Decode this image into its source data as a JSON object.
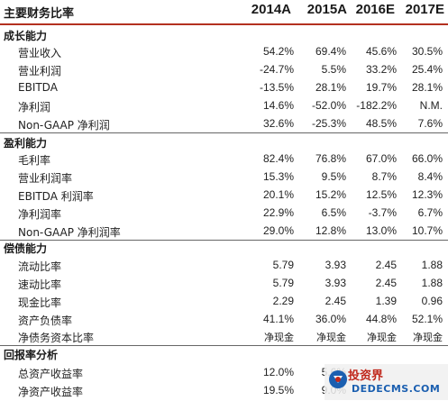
{
  "header": {
    "title": "主要财务比率",
    "years": [
      "2014A",
      "2015A",
      "2016E",
      "2017E"
    ]
  },
  "sections": [
    {
      "title": "成长能力",
      "rows": [
        {
          "label": "营业收入",
          "values": [
            "54.2%",
            "69.4%",
            "45.6%",
            "30.5%"
          ]
        },
        {
          "label": "营业利润",
          "values": [
            "-24.7%",
            "5.5%",
            "33.2%",
            "25.4%"
          ]
        },
        {
          "label": "EBITDA",
          "values": [
            "-13.5%",
            "28.1%",
            "19.7%",
            "28.1%"
          ]
        },
        {
          "label": "净利润",
          "values": [
            "14.6%",
            "-52.0%",
            "-182.2%",
            "N.M."
          ]
        },
        {
          "label": "Non-GAAP 净利润",
          "values": [
            "32.6%",
            "-25.3%",
            "48.5%",
            "7.6%"
          ]
        }
      ]
    },
    {
      "title": "盈利能力",
      "rows": [
        {
          "label": "毛利率",
          "values": [
            "82.4%",
            "76.8%",
            "67.0%",
            "66.0%"
          ]
        },
        {
          "label": "营业利润率",
          "values": [
            "15.3%",
            "9.5%",
            "8.7%",
            "8.4%"
          ]
        },
        {
          "label": "EBITDA 利润率",
          "values": [
            "20.1%",
            "15.2%",
            "12.5%",
            "12.3%"
          ]
        },
        {
          "label": "净利润率",
          "values": [
            "22.9%",
            "6.5%",
            "-3.7%",
            "6.7%"
          ]
        },
        {
          "label": "Non-GAAP 净利润率",
          "values": [
            "29.0%",
            "12.8%",
            "13.0%",
            "10.7%"
          ]
        }
      ]
    },
    {
      "title": "偿债能力",
      "rows": [
        {
          "label": "流动比率",
          "values": [
            "5.79",
            "3.93",
            "2.45",
            "1.88"
          ]
        },
        {
          "label": "速动比率",
          "values": [
            "5.79",
            "3.93",
            "2.45",
            "1.88"
          ]
        },
        {
          "label": "现金比率",
          "values": [
            "2.29",
            "2.45",
            "1.39",
            "0.96"
          ]
        },
        {
          "label": "资产负债率",
          "values": [
            "41.1%",
            "36.0%",
            "44.8%",
            "52.1%"
          ]
        },
        {
          "label": "净债务资本比率",
          "values": [
            "净现金",
            "净现金",
            "净现金",
            "净现金"
          ]
        }
      ]
    },
    {
      "title": "回报率分析",
      "rows": [
        {
          "label": "总资产收益率",
          "values": [
            "12.0%",
            "5.6%",
            "",
            ""
          ]
        },
        {
          "label": "净资产收益率",
          "values": [
            "19.5%",
            "9.0%",
            "",
            ""
          ]
        }
      ]
    }
  ],
  "watermark": {
    "line1": "投资界",
    "line2": "DEDECMS.COM",
    "logo_icon": "dedecms-logo-icon"
  }
}
